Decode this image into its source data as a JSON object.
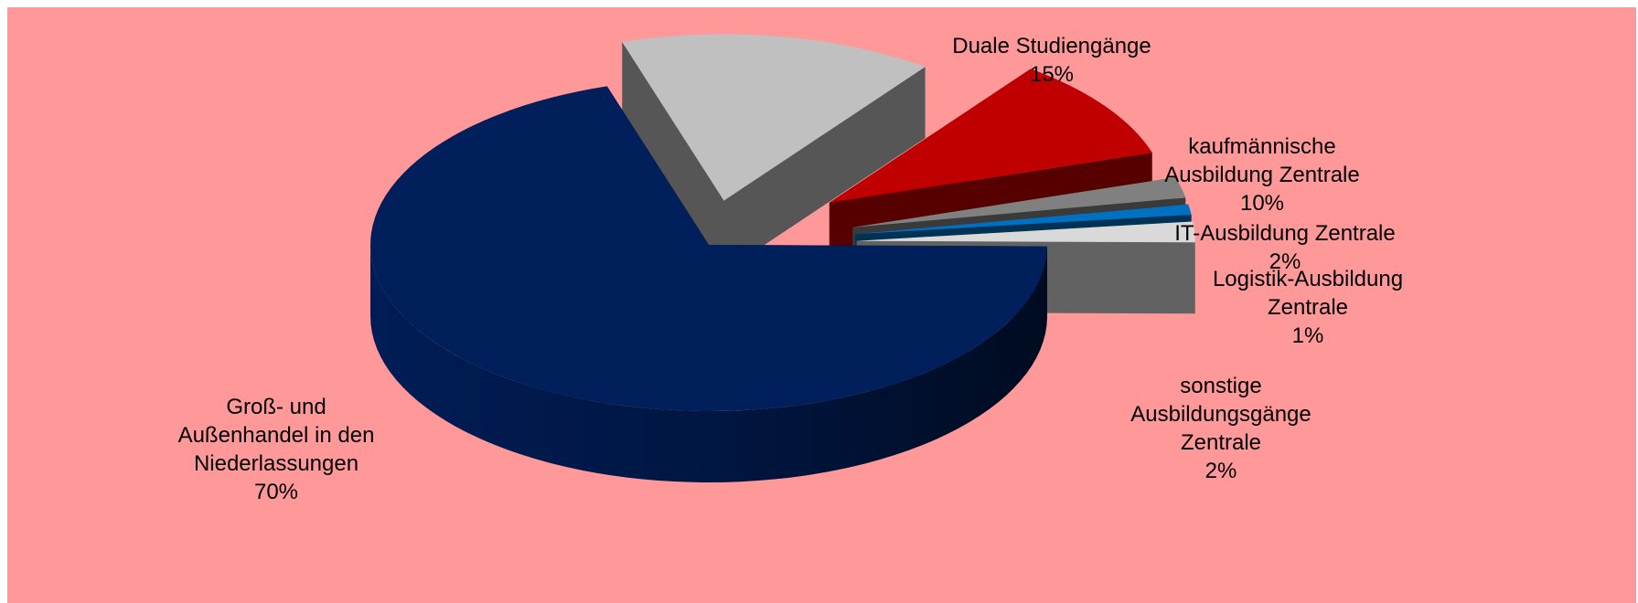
{
  "chart_data": {
    "type": "pie",
    "title": "",
    "background": "#ff9999",
    "slices": [
      {
        "name": "Groß- und\nAußenhandel in den\nNiederlassungen",
        "value": 70,
        "label": "70%",
        "color": "#001f5b"
      },
      {
        "name": "Duale Studiengänge",
        "value": 15,
        "label": "15%",
        "color": "#c0c0c0"
      },
      {
        "name": "kaufmännische\nAusbildung Zentrale",
        "value": 10,
        "label": "10%",
        "color": "#c00000"
      },
      {
        "name": "IT-Ausbildung Zentrale",
        "value": 2,
        "label": "2%",
        "color": "#808080"
      },
      {
        "name": "Logistik-Ausbildung\nZentrale",
        "value": 1,
        "label": "1%",
        "color": "#0070c0"
      },
      {
        "name": "sonstige\nAusbildungsgänge\nZentrale",
        "value": 2,
        "label": "2%",
        "color": "#d9d9d9"
      }
    ]
  }
}
